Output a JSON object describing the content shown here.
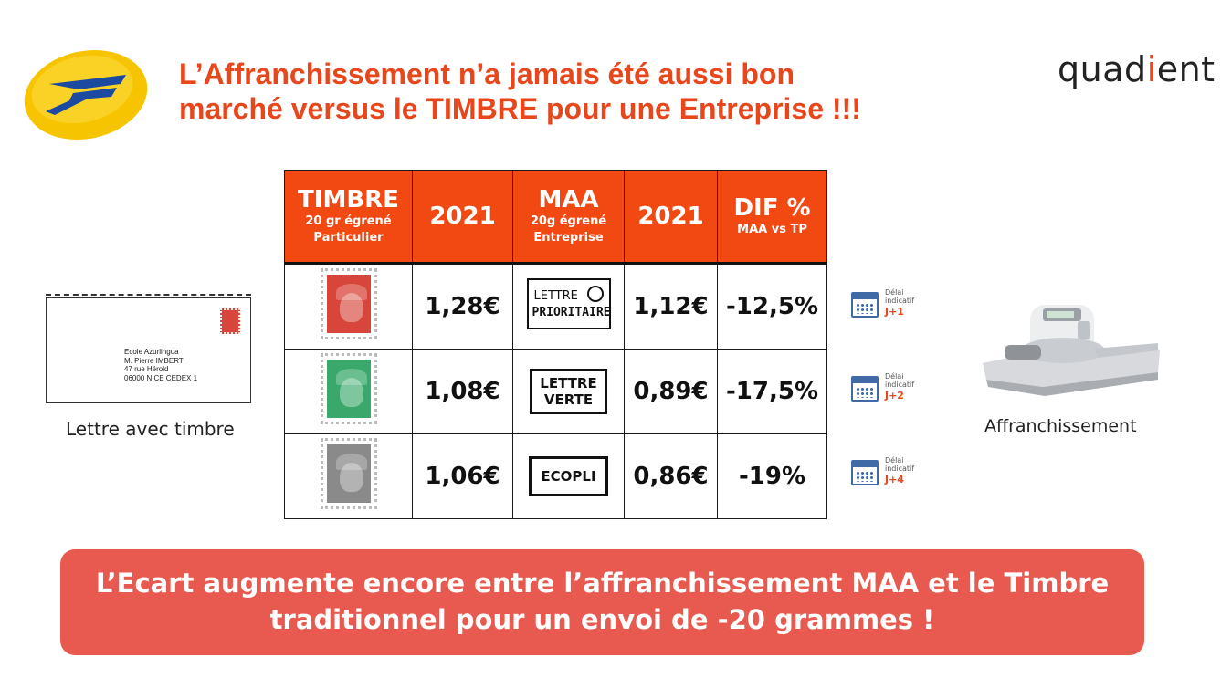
{
  "title": {
    "line1": "L’Affranchissement n’a jamais été aussi bon",
    "line2": "marché versus le TIMBRE pour une Entreprise !!!"
  },
  "logos": {
    "laposte": "la-poste-logo",
    "quadient_pre": "quad",
    "quadient_accent": "i",
    "quadient_post": "ent"
  },
  "table": {
    "headers": {
      "timbre": "TIMBRE",
      "timbre_sub1": "20 gr égrené",
      "timbre_sub2": "Particulier",
      "year1": "2021",
      "maa": "MAA",
      "maa_sub1": "20g égrené",
      "maa_sub2": "Entreprise",
      "year2": "2021",
      "dif": "DIF %",
      "dif_sub": "MAA vs TP"
    },
    "rows": [
      {
        "stamp_color": "#d8453a",
        "timbre_price": "1,28€",
        "maa_label_1": "LETTRE",
        "maa_label_2": "PRIORITAIRE",
        "maa_price": "1,12€",
        "dif": "-12,5%",
        "delay_label_1": "Délai",
        "delay_label_2": "indicatif",
        "delay": "J+1"
      },
      {
        "stamp_color": "#3aa86a",
        "timbre_price": "1,08€",
        "maa_label_1": "LETTRE",
        "maa_label_2": "VERTE",
        "maa_price": "0,89€",
        "dif": "-17,5%",
        "delay_label_1": "Délai",
        "delay_label_2": "indicatif",
        "delay": "J+2"
      },
      {
        "stamp_color": "#8a8a8a",
        "timbre_price": "1,06€",
        "maa_label_1": "ECOPLI",
        "maa_price": "0,86€",
        "dif": "-19%",
        "delay_label_1": "Délai",
        "delay_label_2": "indicatif",
        "delay": "J+4"
      }
    ]
  },
  "envelope": {
    "address": [
      "Ecole Azurlingua",
      "M. Pierre IMBERT",
      "47 rue Hérold",
      "06000 NICE CEDEX 1"
    ],
    "caption": "Lettre avec timbre"
  },
  "machine": {
    "caption": "Affranchissement"
  },
  "banner": {
    "line1": "L’Ecart augmente encore entre l’affranchissement MAA et le Timbre",
    "line2": "traditionnel pour un envoi de -20 grammes !"
  },
  "colors": {
    "accent": "#e8461b",
    "header_bg": "#f24811",
    "banner_bg": "#e85a4f"
  }
}
